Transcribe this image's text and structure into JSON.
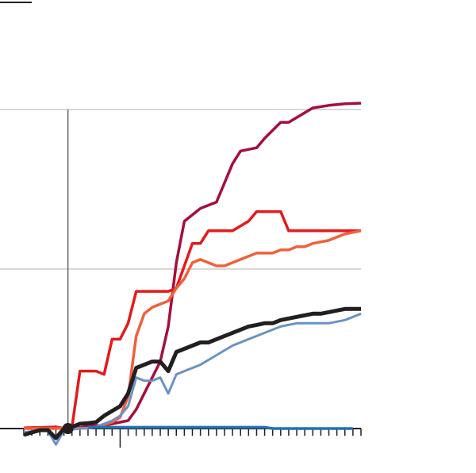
{
  "chart_data": {
    "type": "line",
    "title": "",
    "xlabel": "",
    "ylabel": "",
    "x_start": 0,
    "x_end": 42,
    "ylim": [
      0,
      100
    ],
    "gridlines": [
      50,
      100
    ],
    "grid": true,
    "legend": "none",
    "reference_x": 5.5,
    "marker": {
      "x": 5.5,
      "y": 0,
      "color": "#231f20"
    },
    "baseline_color": "#231f20",
    "grid_color": "#cccccc",
    "ref_color": "#666666",
    "series": [
      {
        "name": "series-dark-red",
        "color": "#a50f3c",
        "x": [
          0,
          2,
          4,
          5,
          7,
          8,
          10,
          11,
          13,
          14,
          16,
          17,
          18,
          19,
          20,
          22,
          23,
          24,
          26,
          27,
          29,
          30,
          32,
          33,
          35,
          36,
          38,
          40,
          42
        ],
        "values": [
          0.2,
          0.3,
          0.5,
          0,
          0.3,
          0.8,
          1.0,
          1.5,
          2.5,
          6,
          16,
          21,
          32,
          52,
          65,
          69,
          70,
          71,
          83,
          87,
          88,
          91,
          96,
          96,
          99,
          100.5,
          101.3,
          101.8,
          102
        ]
      },
      {
        "name": "series-red",
        "color": "#e41a1c",
        "x": [
          0,
          2,
          4,
          5,
          6,
          7,
          8,
          9,
          10,
          11,
          12,
          13,
          14,
          15,
          16,
          18,
          19,
          21,
          22,
          23,
          24,
          25,
          26,
          28,
          29,
          31,
          32,
          33,
          34,
          35,
          36,
          38,
          40,
          42
        ],
        "values": [
          0.2,
          0.3,
          0.3,
          0.2,
          0.4,
          18,
          18,
          18,
          17,
          28,
          28,
          33,
          43,
          43,
          43,
          43,
          44,
          58,
          58,
          62,
          62,
          62,
          62,
          65,
          68,
          68,
          68,
          62,
          62,
          62,
          62,
          62,
          62,
          62
        ]
      },
      {
        "name": "series-orange",
        "color": "#f0603a",
        "x": [
          0,
          2,
          4,
          5,
          7,
          8,
          9,
          10,
          11,
          12,
          13,
          14,
          15,
          16,
          18,
          19,
          20,
          21,
          22,
          24,
          25,
          27,
          29,
          30,
          31,
          32,
          33,
          34,
          35,
          36,
          38,
          40,
          42
        ],
        "values": [
          0,
          0,
          0,
          0.2,
          0.1,
          0.1,
          0.5,
          1.2,
          2,
          3.5,
          10,
          29,
          36,
          38,
          40,
          44,
          47,
          52,
          53,
          51,
          51,
          53,
          55,
          55,
          55,
          56,
          56,
          57,
          57,
          58,
          59,
          61,
          62
        ]
      },
      {
        "name": "series-light-blue",
        "color": "#6b92c4",
        "x": [
          0,
          2,
          3,
          4,
          5,
          7,
          8,
          9,
          10,
          11,
          12,
          13,
          14,
          15,
          16,
          17,
          18,
          19,
          20,
          22,
          24,
          26,
          28,
          29,
          30,
          32,
          34,
          36,
          38,
          40,
          42
        ],
        "values": [
          -1.2,
          -0.6,
          -0.8,
          -5,
          -0.6,
          0,
          0.2,
          0.5,
          1.5,
          2.5,
          4,
          7,
          16,
          15,
          15,
          16,
          11,
          17,
          18,
          20,
          23,
          26,
          28,
          29,
          30,
          32,
          33,
          33,
          33,
          34,
          36
        ]
      },
      {
        "name": "series-black",
        "color": "#231f20",
        "x": [
          0,
          2,
          3,
          4,
          5,
          6,
          7,
          8,
          9,
          10,
          11,
          12,
          13,
          14,
          15,
          16,
          17,
          18,
          19,
          20,
          21,
          22,
          23,
          24,
          25,
          26,
          27,
          28,
          29,
          30,
          31,
          32,
          33,
          34,
          35,
          36,
          37,
          38,
          39,
          40,
          41,
          42
        ],
        "values": [
          -2,
          -0.5,
          -0.5,
          -3,
          0,
          0.5,
          1.5,
          1.7,
          2,
          4,
          5.5,
          7,
          11,
          19,
          20,
          21,
          21,
          18,
          24,
          25,
          26,
          27,
          27,
          28,
          29,
          30,
          31,
          32,
          32.5,
          33,
          33,
          34,
          34.5,
          35,
          35.5,
          36,
          36,
          36.5,
          37,
          37.5,
          37.5,
          37.5
        ]
      },
      {
        "name": "series-blue",
        "color": "#2171b5",
        "x": [
          8,
          15,
          20,
          25,
          30,
          31,
          35,
          40,
          41
        ],
        "values": [
          0.4,
          0.4,
          0.4,
          0.4,
          0.4,
          0,
          0,
          0,
          0
        ]
      }
    ]
  }
}
